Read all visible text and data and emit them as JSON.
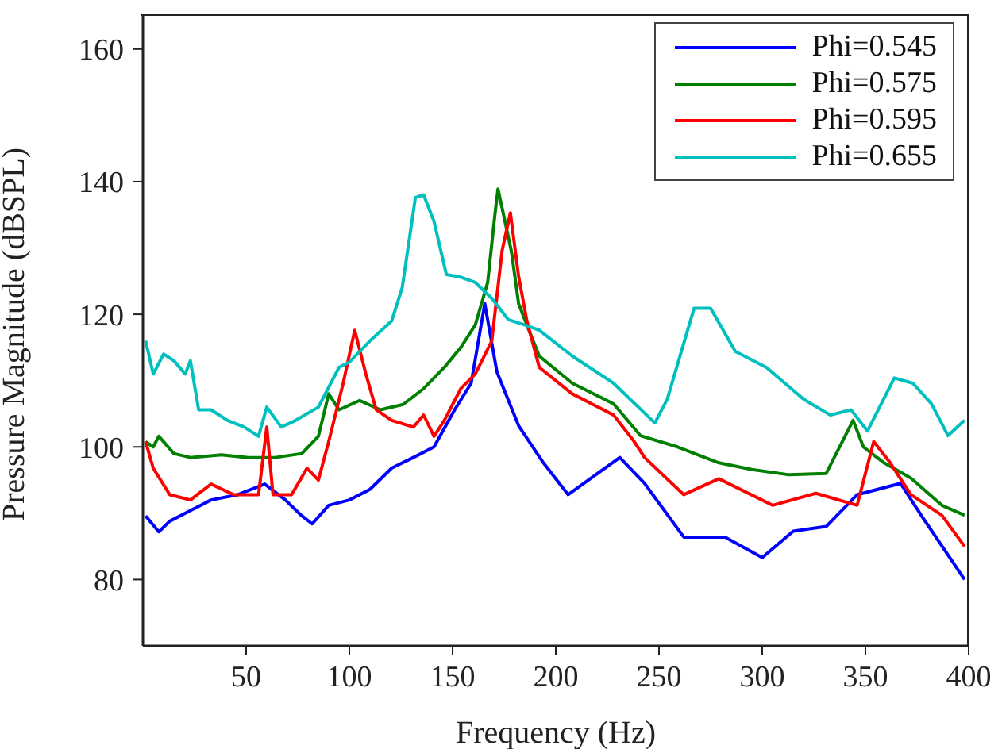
{
  "chart_data": {
    "type": "line",
    "xlabel": "Frequency (Hz)",
    "ylabel": "Pressure Magnitude (dBSPL)",
    "xlim": [
      0,
      400
    ],
    "ylim": [
      70,
      165
    ],
    "xticks": [
      50,
      100,
      150,
      200,
      250,
      300,
      350,
      400
    ],
    "yticks": [
      80,
      100,
      120,
      140,
      160
    ],
    "legend": "top right",
    "marker": "none",
    "line_style": "solid",
    "series": [
      {
        "name": "Phi=0.545",
        "color": "#0000ff",
        "x": [
          1.3,
          7.7,
          13,
          23,
          33,
          46,
          59,
          69,
          77,
          82,
          90,
          100,
          110,
          120.5,
          131,
          141,
          151,
          159,
          165.6,
          171.5,
          182,
          194,
          206,
          231,
          243,
          262,
          282,
          300,
          315,
          331,
          346,
          367,
          377,
          398
        ],
        "values": [
          89.6,
          87.2,
          88.8,
          90.4,
          92,
          92.8,
          94.4,
          92,
          89.6,
          88.4,
          91.2,
          92,
          93.6,
          96.8,
          98.4,
          100,
          105.6,
          109.6,
          121.6,
          111.3,
          103.2,
          97.6,
          92.8,
          98.4,
          94.5,
          86.4,
          86.4,
          83.3,
          87.3,
          88,
          92.8,
          94.5,
          89.7,
          80
        ]
      },
      {
        "name": "Phi=0.575",
        "color": "#007f00",
        "x": [
          1.3,
          5,
          7.7,
          15,
          23,
          38,
          51,
          64,
          77,
          85,
          90,
          95,
          105,
          115,
          126,
          136,
          146,
          154,
          161,
          167,
          170.5,
          172,
          178.5,
          182,
          187,
          192,
          208,
          228,
          241,
          259,
          279,
          295,
          313,
          331,
          344,
          349,
          359,
          372,
          387,
          398
        ],
        "values": [
          100.8,
          100,
          101.6,
          99,
          98.4,
          98.8,
          98.4,
          98.4,
          99,
          101.6,
          108,
          105.6,
          107,
          105.6,
          106.4,
          108.8,
          112,
          115,
          118.4,
          124.8,
          135,
          138.9,
          129.5,
          121.6,
          117.6,
          113.7,
          109.6,
          106.5,
          101.7,
          100,
          97.6,
          96.6,
          95.8,
          96,
          104,
          100,
          97.6,
          95.3,
          91.2,
          89.7
        ]
      },
      {
        "name": "Phi=0.595",
        "color": "#ff0000",
        "x": [
          1.3,
          5,
          13,
          23,
          33,
          44,
          56,
          60,
          63,
          72,
          79.5,
          85,
          90,
          97,
          102.6,
          108,
          113,
          120.5,
          131,
          136,
          141,
          146,
          154,
          161,
          169,
          174,
          178,
          182,
          186,
          192,
          208,
          228,
          238,
          243,
          262,
          279,
          305,
          326,
          346,
          354,
          362,
          372,
          387,
          398
        ],
        "values": [
          100.8,
          96.8,
          92.8,
          92,
          94.4,
          92.8,
          92.8,
          103,
          92.8,
          92.8,
          96.8,
          95,
          100.8,
          109.6,
          117.6,
          111,
          105.6,
          104,
          103,
          104.8,
          101.6,
          104,
          108.8,
          111,
          116,
          129.6,
          135.3,
          125.7,
          119,
          112,
          108,
          104.8,
          100.8,
          98.4,
          92.8,
          95.2,
          91.2,
          93,
          91.2,
          100.8,
          97.6,
          92.8,
          89.7,
          85
        ]
      },
      {
        "name": "Phi=0.655",
        "color": "#00bfbf",
        "x": [
          1.3,
          5,
          10,
          15,
          20.5,
          23,
          27,
          33,
          41,
          49,
          56,
          60,
          67,
          74,
          85,
          95,
          100,
          110,
          120.5,
          125.6,
          132,
          136,
          141,
          147,
          154,
          161,
          169,
          177,
          184,
          192,
          208,
          228,
          248,
          254,
          267,
          275,
          287,
          302,
          320,
          333,
          343,
          351,
          364,
          373,
          382,
          390,
          398
        ],
        "values": [
          116,
          111,
          114,
          113,
          111,
          113,
          105.6,
          105.6,
          104,
          103,
          101.6,
          106,
          103,
          104,
          106,
          112,
          112.8,
          116,
          119,
          124,
          137.6,
          138,
          134,
          126,
          125.6,
          124.8,
          122.4,
          119.2,
          118.5,
          117.6,
          113.7,
          109.6,
          103.6,
          107.2,
          120.9,
          120.9,
          114.4,
          112,
          107.2,
          104.8,
          105.6,
          102.4,
          110.4,
          109.6,
          106.5,
          101.7,
          104
        ]
      }
    ]
  }
}
